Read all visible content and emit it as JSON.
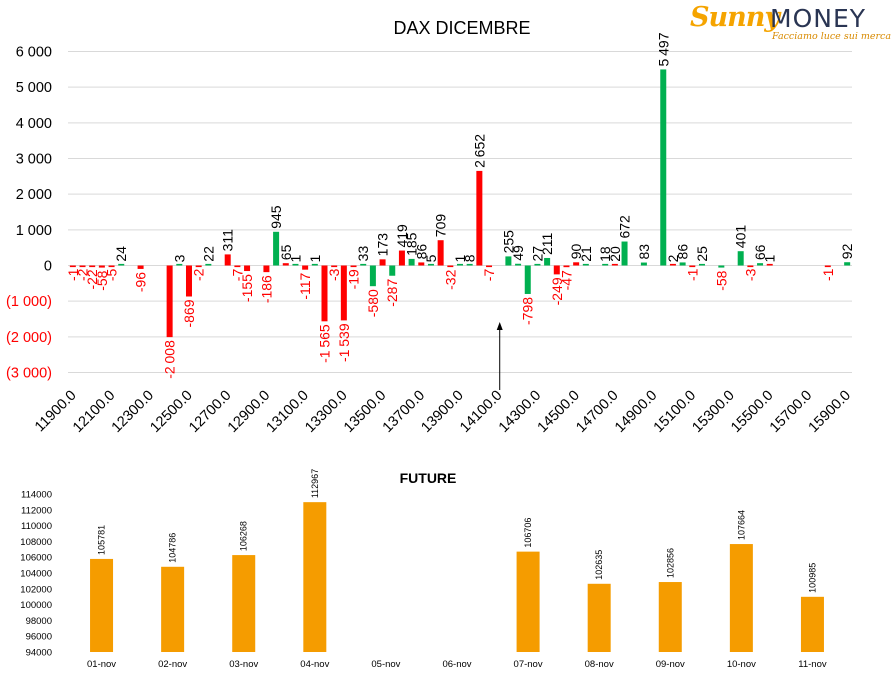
{
  "logo": {
    "brand_part1": "Sunny",
    "brand_part2": "MONEY",
    "tagline": "Facciamo luce sui mercati",
    "colors": {
      "sunny": "#f5a400",
      "money": "#2a3553"
    }
  },
  "colors": {
    "positive": "#00b050",
    "negative": "#ff0000",
    "future_bar": "#f59c00",
    "axis_text": "#000000",
    "negative_tick_text": "#ff0000"
  },
  "chart_data": [
    {
      "type": "bar",
      "title": "DAX DICEMBRE",
      "ylim": [
        -3000,
        6000
      ],
      "yticks": [
        6000,
        5000,
        4000,
        3000,
        2000,
        1000,
        0,
        -1000,
        -2000,
        -3000
      ],
      "ytick_labels": [
        "6 000",
        "5 000",
        "4 000",
        "3 000",
        "2 000",
        "1 000",
        "0",
        "(1 000)",
        "(2 000)",
        "(3 000)"
      ],
      "x_tick_labels": [
        "11900.0",
        "12100.0",
        "12300.0",
        "12500.0",
        "12700.0",
        "12900.0",
        "13100.0",
        "13300.0",
        "13500.0",
        "13700.0",
        "13900.0",
        "14100.0",
        "14300.0",
        "14500.0",
        "14700.0",
        "14900.0",
        "15100.0",
        "15300.0",
        "15500.0",
        "15700.0",
        "15900.0"
      ],
      "x_range": [
        11900,
        15900
      ],
      "strike_step": 50,
      "grid": true,
      "annotation": {
        "type": "arrow",
        "at_strike": 14100
      },
      "bars": [
        {
          "strike": 11900,
          "red": -1
        },
        {
          "strike": 11950,
          "red": -2
        },
        {
          "strike": 12000,
          "red": -22
        },
        {
          "strike": 12050,
          "red": -58
        },
        {
          "strike": 12100,
          "red": -5
        },
        {
          "strike": 12150,
          "green": 24
        },
        {
          "strike": 12250,
          "red": -96
        },
        {
          "strike": 12400,
          "red": -2008
        },
        {
          "strike": 12450,
          "green": 3
        },
        {
          "strike": 12500,
          "red": -869
        },
        {
          "strike": 12550,
          "red": -2
        },
        {
          "strike": 12600,
          "green": 22
        },
        {
          "strike": 12700,
          "red": 311
        },
        {
          "strike": 12750,
          "red": -7
        },
        {
          "strike": 12800,
          "red": -155
        },
        {
          "strike": 12900,
          "red": -186
        },
        {
          "strike": 12950,
          "green": 945
        },
        {
          "strike": 13000,
          "red": 65
        },
        {
          "strike": 13050,
          "green": 1
        },
        {
          "strike": 13100,
          "red": -117
        },
        {
          "strike": 13150,
          "green": 1
        },
        {
          "strike": 13200,
          "red": -1565
        },
        {
          "strike": 13250,
          "red": -3
        },
        {
          "strike": 13300,
          "red": -1539
        },
        {
          "strike": 13350,
          "red": -19
        },
        {
          "strike": 13400,
          "green": 33
        },
        {
          "strike": 13450,
          "green": -580
        },
        {
          "strike": 13500,
          "red": 173
        },
        {
          "strike": 13550,
          "green": -287
        },
        {
          "strike": 13600,
          "red": 419
        },
        {
          "strike": 13650,
          "green": 185
        },
        {
          "strike": 13700,
          "red": 86
        },
        {
          "strike": 13750,
          "green": 5
        },
        {
          "strike": 13800,
          "red": 709
        },
        {
          "strike": 13850,
          "red": -32
        },
        {
          "strike": 13900,
          "green": 1
        },
        {
          "strike": 13950,
          "green": 8
        },
        {
          "strike": 14000,
          "red": 2652
        },
        {
          "strike": 14050,
          "red": -7
        },
        {
          "strike": 14150,
          "green": 255
        },
        {
          "strike": 14200,
          "green": 49
        },
        {
          "strike": 14250,
          "green": -798
        },
        {
          "strike": 14300,
          "green": 27
        },
        {
          "strike": 14350,
          "green": 211
        },
        {
          "strike": 14400,
          "red": -249
        },
        {
          "strike": 14450,
          "red": -47
        },
        {
          "strike": 14500,
          "red": 90
        },
        {
          "strike": 14550,
          "green": 21
        },
        {
          "strike": 14650,
          "green": 18
        },
        {
          "strike": 14700,
          "red": 20
        },
        {
          "strike": 14750,
          "green": 672
        },
        {
          "strike": 14850,
          "green": 83
        },
        {
          "strike": 14950,
          "green": 5497
        },
        {
          "strike": 15000,
          "red": 2
        },
        {
          "strike": 15050,
          "green": 86
        },
        {
          "strike": 15100,
          "red": -1
        },
        {
          "strike": 15150,
          "green": 25
        },
        {
          "strike": 15250,
          "green": -58
        },
        {
          "strike": 15350,
          "green": 401
        },
        {
          "strike": 15400,
          "red": -3
        },
        {
          "strike": 15450,
          "green": 66
        },
        {
          "strike": 15500,
          "red": 1
        },
        {
          "strike": 15800,
          "red": -1
        },
        {
          "strike": 15900,
          "green": 92
        }
      ]
    },
    {
      "type": "bar",
      "title": "FUTURE",
      "ylim": [
        94000,
        114000
      ],
      "yticks": [
        94000,
        96000,
        98000,
        100000,
        102000,
        104000,
        106000,
        108000,
        110000,
        112000,
        114000
      ],
      "categories": [
        "01-nov",
        "02-nov",
        "03-nov",
        "04-nov",
        "05-nov",
        "06-nov",
        "07-nov",
        "08-nov",
        "09-nov",
        "10-nov",
        "11-nov"
      ],
      "values": [
        105781,
        104786,
        106268,
        112967,
        null,
        null,
        106706,
        102635,
        102856,
        107664,
        100985
      ],
      "grid": false
    }
  ]
}
